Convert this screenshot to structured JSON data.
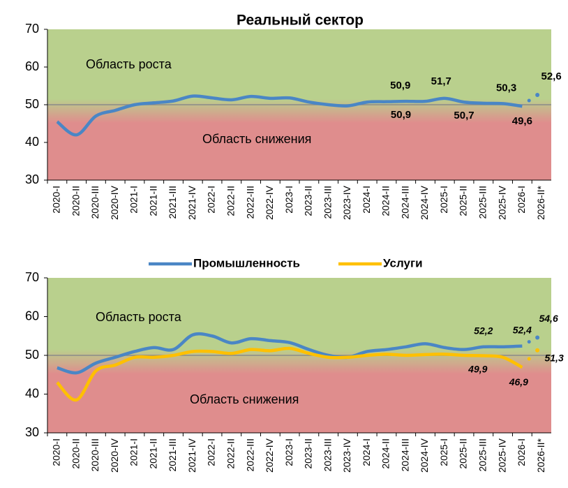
{
  "chart_data": [
    {
      "type": "line",
      "title": "Реальный сектор",
      "categories": [
        "2020-I",
        "2020-II",
        "2020-III",
        "2020-IV",
        "2021-I",
        "2021-II",
        "2021-III",
        "2021-IV",
        "2022-I",
        "2022-II",
        "2022-III",
        "2022-IV",
        "2023-I",
        "2023-II",
        "2023-III",
        "2023-IV",
        "2024-I",
        "2024-II",
        "2024-III",
        "2024-IV",
        "2025-I",
        "2025-II",
        "2025-III",
        "2025-IV",
        "2026-I",
        "2026-II*"
      ],
      "series": [
        {
          "color": "#4a86c5",
          "values": [
            45.5,
            42,
            47,
            48.5,
            50,
            50.5,
            51,
            52.3,
            51.8,
            51.3,
            52.2,
            51.7,
            51.8,
            50.7,
            50,
            49.7,
            50.7,
            50.8,
            50.9,
            50.9,
            51.7,
            50.7,
            50.4,
            50.3,
            49.6,
            52.6
          ],
          "value_labels": [
            null,
            null,
            null,
            null,
            null,
            null,
            null,
            null,
            null,
            null,
            null,
            null,
            null,
            null,
            null,
            null,
            null,
            null,
            "50,9",
            "50,9",
            "51,7",
            "50,7",
            null,
            "50,3",
            "49,6",
            "52,6"
          ]
        }
      ],
      "annotations": [
        "Область роста",
        "Область снижения"
      ],
      "ylim": [
        30,
        70
      ],
      "yticks": [
        30,
        40,
        50,
        60,
        70
      ],
      "threshold": 50
    },
    {
      "type": "line",
      "categories": [
        "2020-I",
        "2020-II",
        "2020-III",
        "2020-IV",
        "2021-I",
        "2021-II",
        "2021-III",
        "2021-IV",
        "2022-I",
        "2022-II",
        "2022-III",
        "2022-IV",
        "2023-I",
        "2023-II",
        "2023-III",
        "2023-IV",
        "2024-I",
        "2024-II",
        "2024-III",
        "2024-IV",
        "2025-I",
        "2025-II",
        "2025-III",
        "2025-IV",
        "2026-I",
        "2026-II*"
      ],
      "series": [
        {
          "name": "Промышленность",
          "color": "#4a86c5",
          "values": [
            46.8,
            45.5,
            48,
            49.5,
            51,
            52,
            51.5,
            55.3,
            55,
            53.2,
            54.3,
            53.8,
            53.3,
            51.5,
            50,
            49.5,
            51,
            51.5,
            52.2,
            53,
            52,
            51.5,
            52.2,
            52.2,
            52.4,
            54.6
          ],
          "value_labels": [
            null,
            null,
            null,
            null,
            null,
            null,
            null,
            null,
            null,
            null,
            null,
            null,
            null,
            null,
            null,
            null,
            null,
            null,
            null,
            null,
            null,
            null,
            "52,2",
            null,
            "52,4",
            "54,6"
          ]
        },
        {
          "name": "Услуги",
          "color": "#ffc000",
          "values": [
            43,
            38.5,
            46,
            47.5,
            49.5,
            49.5,
            50,
            51,
            51,
            50.5,
            51.5,
            51.2,
            51.8,
            50.5,
            49.5,
            49.5,
            50,
            50.3,
            50,
            50.2,
            50.3,
            50,
            49.9,
            49.5,
            46.9,
            51.3
          ],
          "value_labels": [
            null,
            null,
            null,
            null,
            null,
            null,
            null,
            null,
            null,
            null,
            null,
            null,
            null,
            null,
            null,
            null,
            null,
            null,
            null,
            null,
            null,
            null,
            "49,9",
            null,
            "46,9",
            "51,3"
          ]
        }
      ],
      "annotations": [
        "Область роста",
        "Область снижения"
      ],
      "ylim": [
        30,
        70
      ],
      "yticks": [
        30,
        40,
        50,
        60,
        70
      ],
      "threshold": 50,
      "legend": "top"
    }
  ]
}
